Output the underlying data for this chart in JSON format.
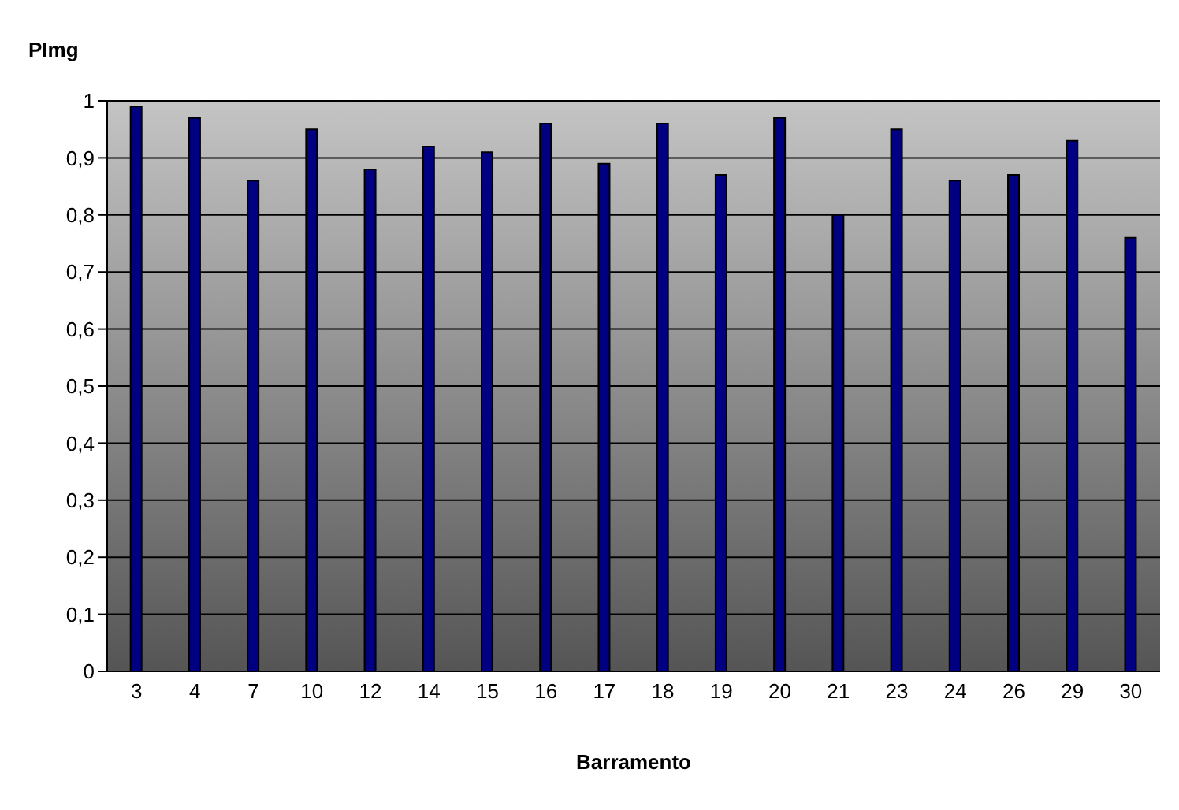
{
  "chart_data": {
    "type": "bar",
    "ylabel": "PImg",
    "xlabel": "Barramento",
    "categories": [
      "3",
      "4",
      "7",
      "10",
      "12",
      "14",
      "15",
      "16",
      "17",
      "18",
      "19",
      "20",
      "21",
      "23",
      "24",
      "26",
      "29",
      "30"
    ],
    "values": [
      0.99,
      0.97,
      0.86,
      0.95,
      0.88,
      0.92,
      0.91,
      0.96,
      0.89,
      0.96,
      0.87,
      0.97,
      0.8,
      0.95,
      0.86,
      0.87,
      0.93,
      0.76
    ],
    "color": "#000080",
    "ylim": [
      0,
      1
    ],
    "yticks": [
      {
        "value": 0,
        "label": "0"
      },
      {
        "value": 0.1,
        "label": "0,1"
      },
      {
        "value": 0.2,
        "label": "0,2"
      },
      {
        "value": 0.3,
        "label": "0,3"
      },
      {
        "value": 0.4,
        "label": "0,4"
      },
      {
        "value": 0.5,
        "label": "0,5"
      },
      {
        "value": 0.6,
        "label": "0,6"
      },
      {
        "value": 0.7,
        "label": "0,7"
      },
      {
        "value": 0.8,
        "label": "0,8"
      },
      {
        "value": 0.9,
        "label": "0,9"
      },
      {
        "value": 1,
        "label": "1"
      }
    ],
    "grid": "y"
  }
}
